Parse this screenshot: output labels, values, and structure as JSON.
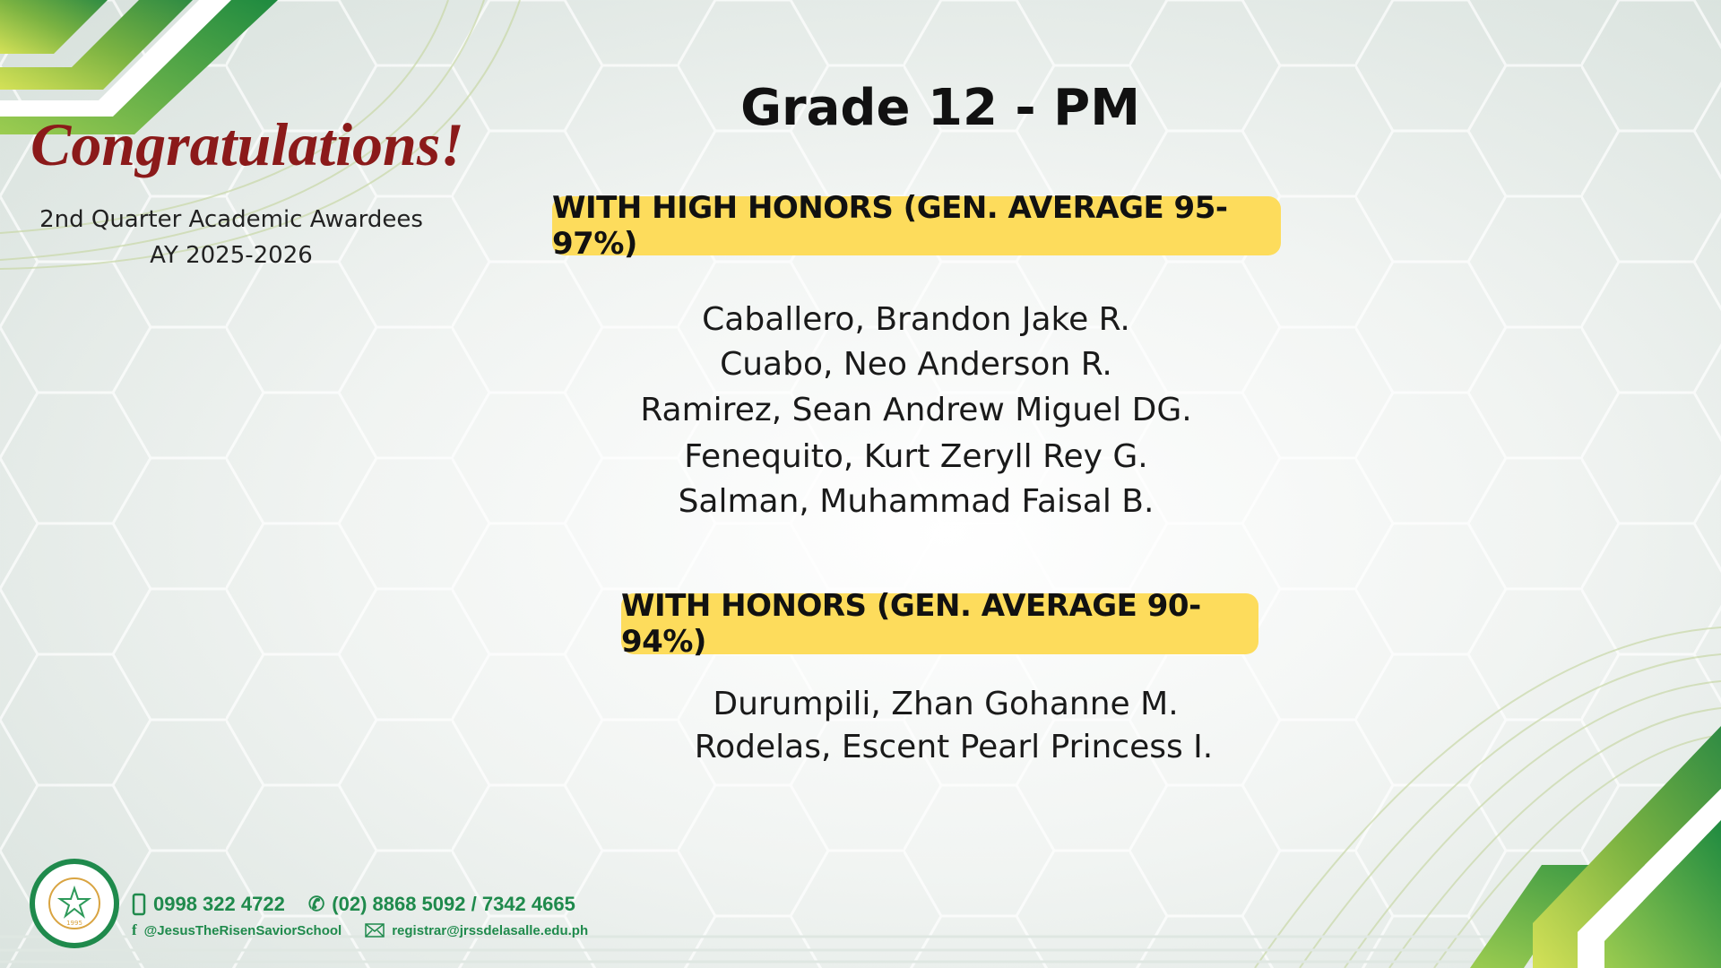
{
  "header": {
    "title": "Grade 12 - PM",
    "congratulations": "Congratulations!",
    "subtitle_line1": "2nd Quarter Academic Awardees",
    "subtitle_line2": "AY 2025-2026"
  },
  "sections": [
    {
      "label": "WITH HIGH HONORS (GEN. AVERAGE 95-97%)",
      "names": [
        "Caballero, Brandon Jake R.",
        "Cuabo, Neo Anderson R.",
        "Ramirez, Sean Andrew Miguel DG.",
        "Fenequito, Kurt Zeryll Rey G.",
        "Salman, Muhammad Faisal B."
      ]
    },
    {
      "label": "WITH HONORS (GEN. AVERAGE 90-94%)",
      "names": [
        "Durumpili, Zhan Gohanne M.",
        "Rodelas, Escent Pearl Princess I."
      ]
    }
  ],
  "footer": {
    "mobile": "0998 322 4722",
    "landline": "(02) 8868 5092 / 7342 4665",
    "facebook": "@JesusTheRisenSaviorSchool",
    "email": "registrar@jrssdelasalle.edu.ph",
    "logo_text": "JESUS THE RISEN SAVIOR SCHOOL INTERNATIONAL",
    "logo_year": "1995"
  },
  "colors": {
    "green": "#1f8a4c",
    "badge": "#fddc5c",
    "congrats": "#8b1a1a"
  },
  "icons": {
    "mobile": "mobile-phone-icon",
    "phone": "telephone-icon",
    "facebook": "facebook-icon",
    "email": "envelope-icon"
  }
}
